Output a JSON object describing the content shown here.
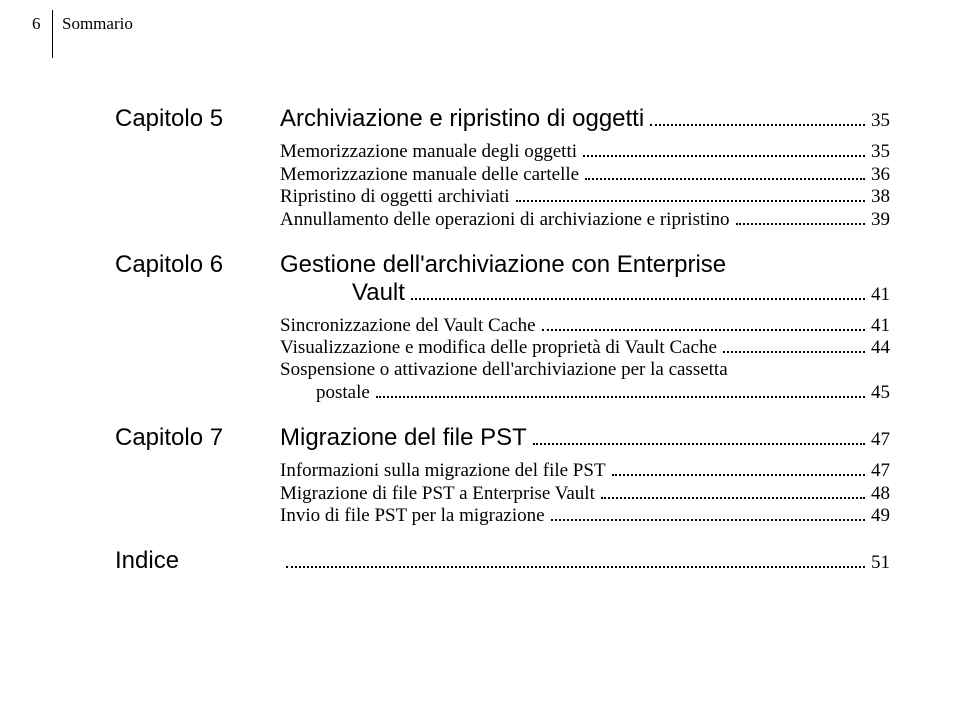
{
  "header": {
    "page_number": "6",
    "section": "Sommario"
  },
  "chapters": [
    {
      "label": "Capitolo 5",
      "title": "Archiviazione e ripristino di oggetti",
      "page": "35",
      "entries": [
        {
          "text": "Memorizzazione manuale degli oggetti",
          "page": "35"
        },
        {
          "text": "Memorizzazione manuale delle cartelle",
          "page": "36"
        },
        {
          "text": "Ripristino di oggetti archiviati",
          "page": "38"
        },
        {
          "text": "Annullamento delle operazioni di archiviazione e ripristino",
          "page": "39"
        }
      ]
    },
    {
      "label": "Capitolo 6",
      "title_line1": "Gestione dell'archiviazione con Enterprise",
      "title_line2": "Vault",
      "page": "41",
      "entries": [
        {
          "text": "Sincronizzazione del Vault Cache",
          "page": "41"
        },
        {
          "text": "Visualizzazione e modifica delle proprietà di Vault Cache",
          "page": "44"
        },
        {
          "text_line1": "Sospensione o attivazione dell'archiviazione per la cassetta",
          "text_line2": "postale",
          "page": "45"
        }
      ]
    },
    {
      "label": "Capitolo 7",
      "title": "Migrazione del file PST",
      "page": "47",
      "entries": [
        {
          "text": "Informazioni sulla migrazione del file PST",
          "page": "47"
        },
        {
          "text": "Migrazione di file PST a Enterprise Vault",
          "page": "48"
        },
        {
          "text": "Invio di file PST per la migrazione",
          "page": "49"
        }
      ]
    }
  ],
  "index": {
    "label": "Indice",
    "page": "51"
  },
  "style": {
    "background_color": "#ffffff",
    "text_color": "#000000",
    "body_font": "Georgia, Times New Roman, serif",
    "heading_font": "Trebuchet MS, Lucida Sans, Arial, sans-serif",
    "heading_fontsize_pt": 18,
    "entry_fontsize_pt": 14,
    "page_number_fontsize_pt": 13,
    "dot_leader_color": "#000000",
    "header_rule_color": "#000000"
  }
}
